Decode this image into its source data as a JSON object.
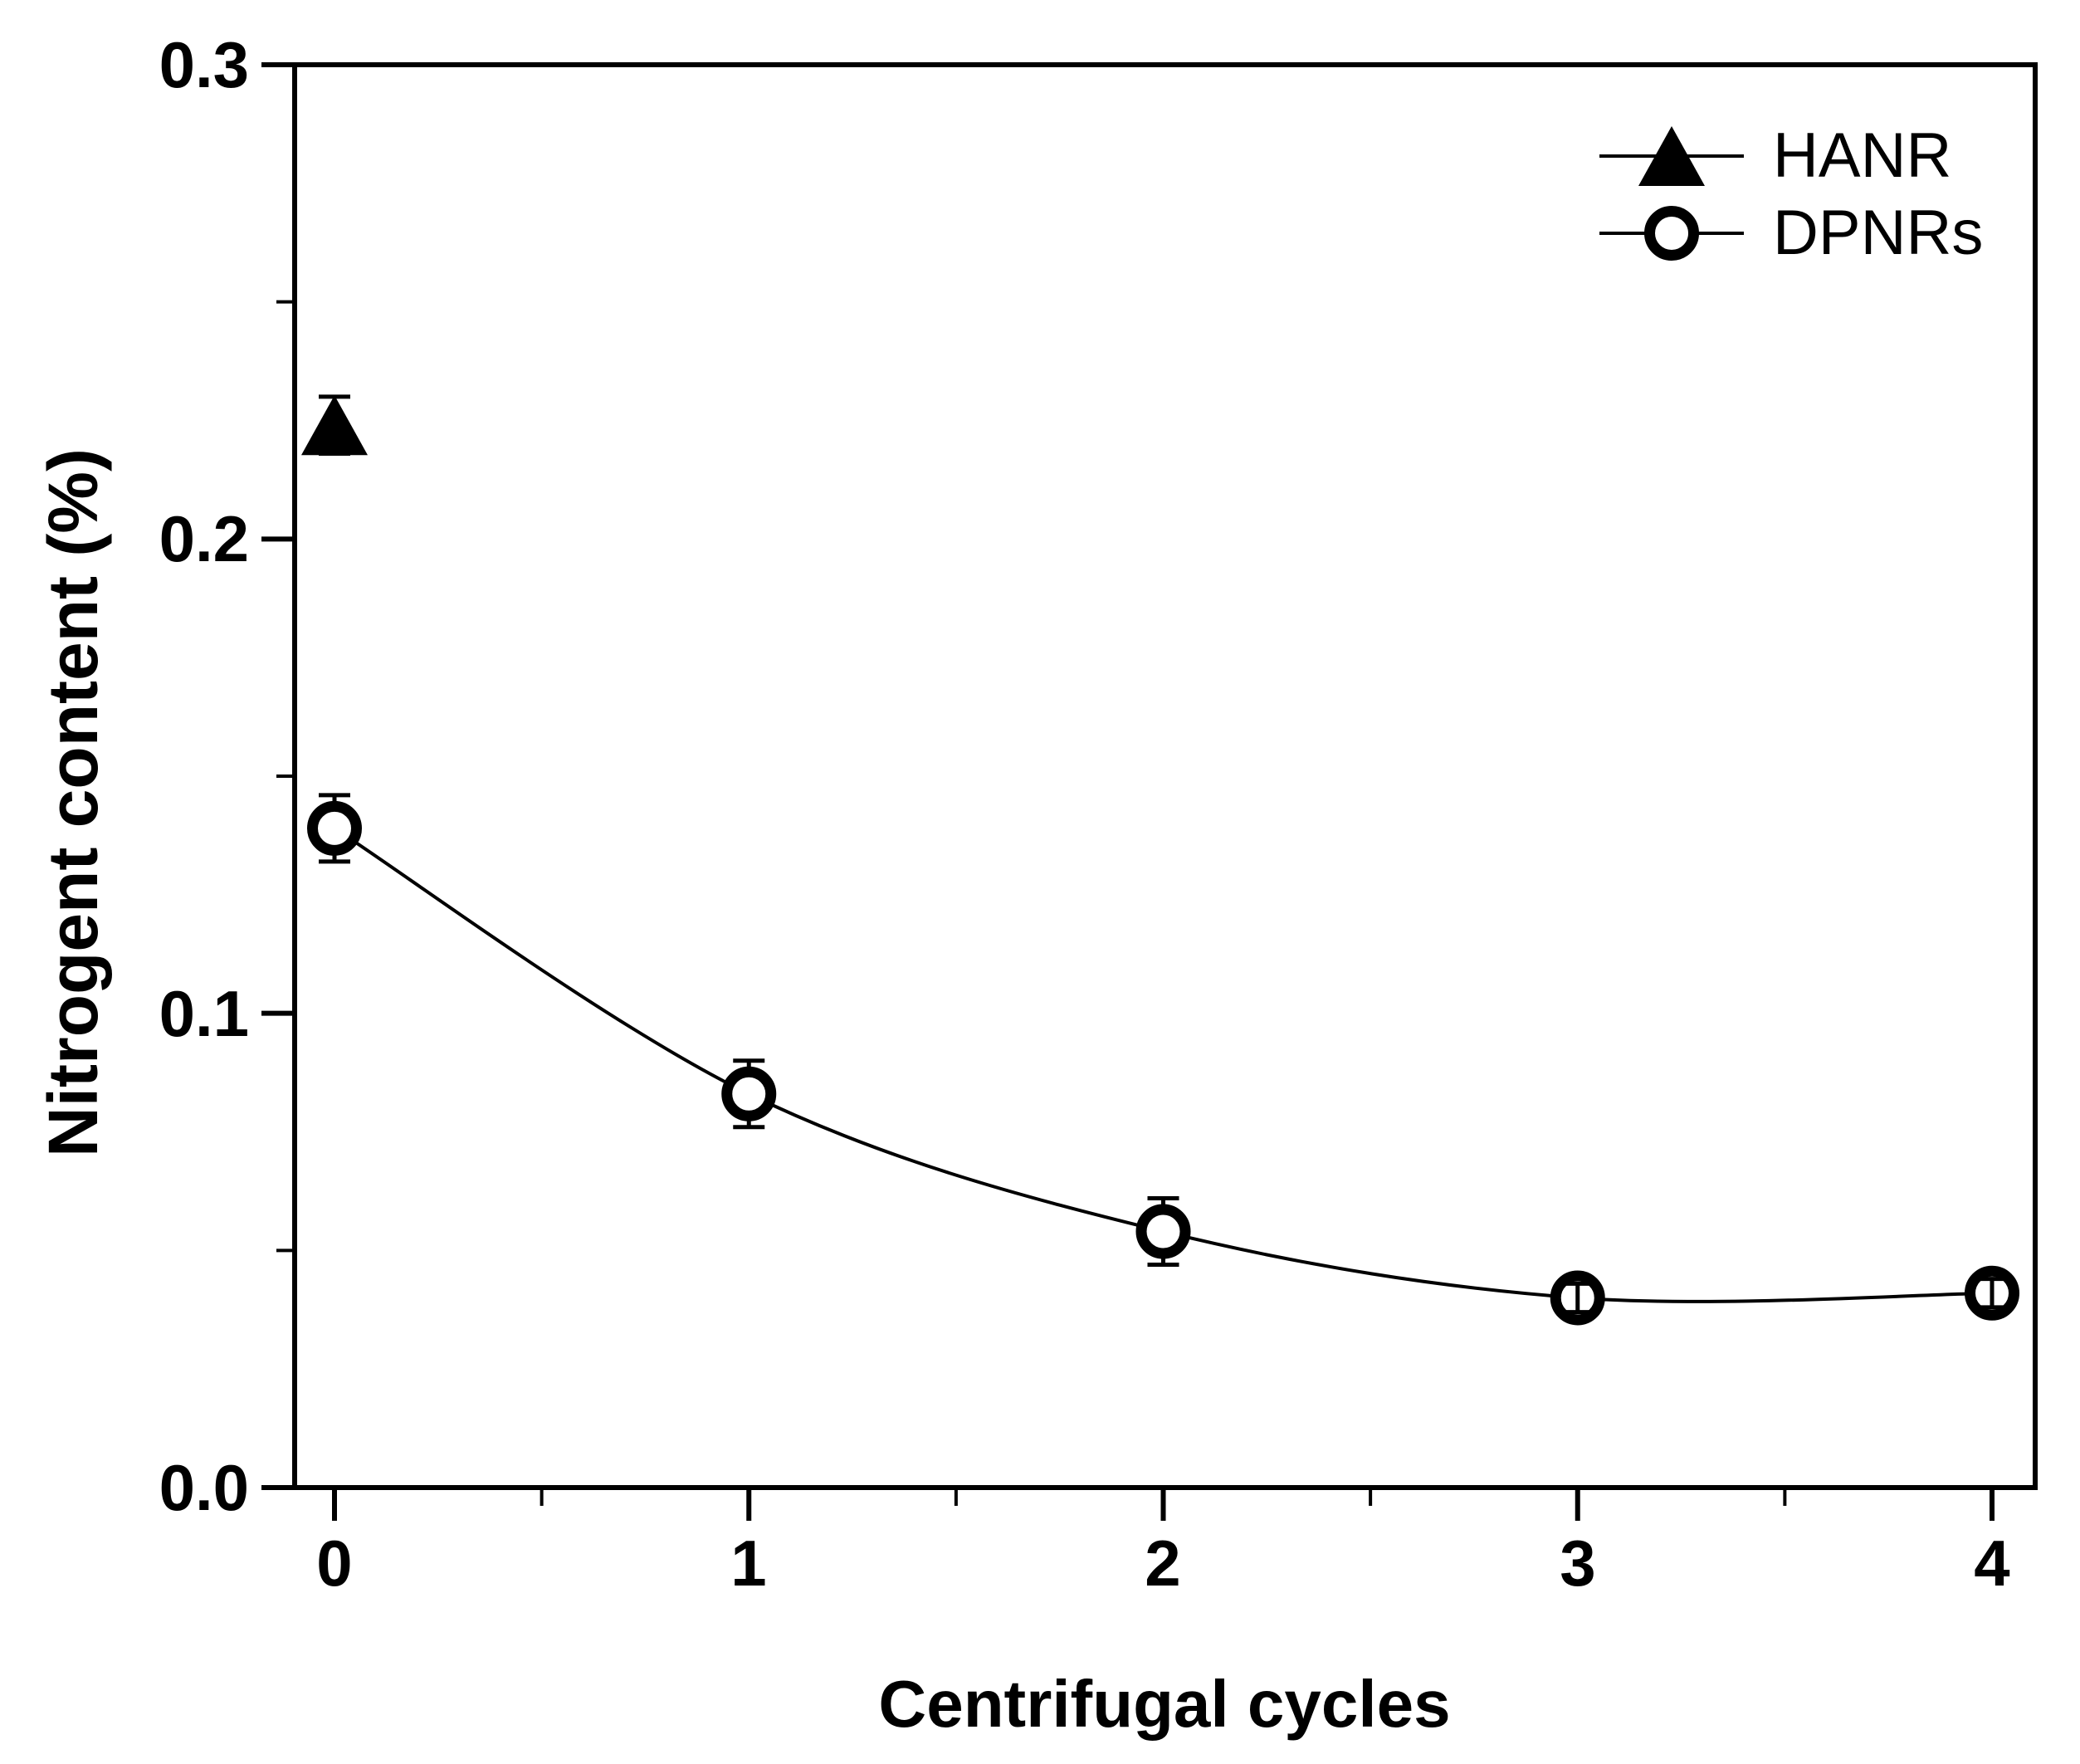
{
  "figure": {
    "background": "#ffffff"
  },
  "chart_data": {
    "type": "scatter",
    "title": "",
    "xlabel": "Centrifugal cycles",
    "ylabel": "Nitrogent content (%)",
    "xlim": [
      -0.1,
      4.1
    ],
    "ylim": [
      0.0,
      0.3
    ],
    "grid": false,
    "legend_position": "top-right",
    "x_ticks": [
      0,
      1,
      2,
      3,
      4
    ],
    "x_tick_labels": [
      "0",
      "1",
      "2",
      "3",
      "4"
    ],
    "x_minor_ticks": [
      0.5,
      1.5,
      2.5,
      3.5
    ],
    "y_ticks": [
      0.0,
      0.1,
      0.2,
      0.3
    ],
    "y_tick_labels": [
      "0.0",
      "0.1",
      "0.2",
      "0.3"
    ],
    "y_minor_ticks": [
      0.05,
      0.15,
      0.25
    ],
    "colors": {
      "foreground": "#000000",
      "background": "#ffffff"
    },
    "series": [
      {
        "name": "HANR",
        "marker": "triangle-filled",
        "line": "none",
        "x": [
          0
        ],
        "y": [
          0.224
        ],
        "yerr": [
          0.006
        ]
      },
      {
        "name": "DPNRs",
        "marker": "circle-open",
        "line": "smooth",
        "x": [
          0,
          1,
          2,
          3,
          4
        ],
        "y": [
          0.139,
          0.083,
          0.054,
          0.04,
          0.041
        ],
        "yerr": [
          0.007,
          0.007,
          0.007,
          0.003,
          0.003
        ]
      }
    ]
  }
}
